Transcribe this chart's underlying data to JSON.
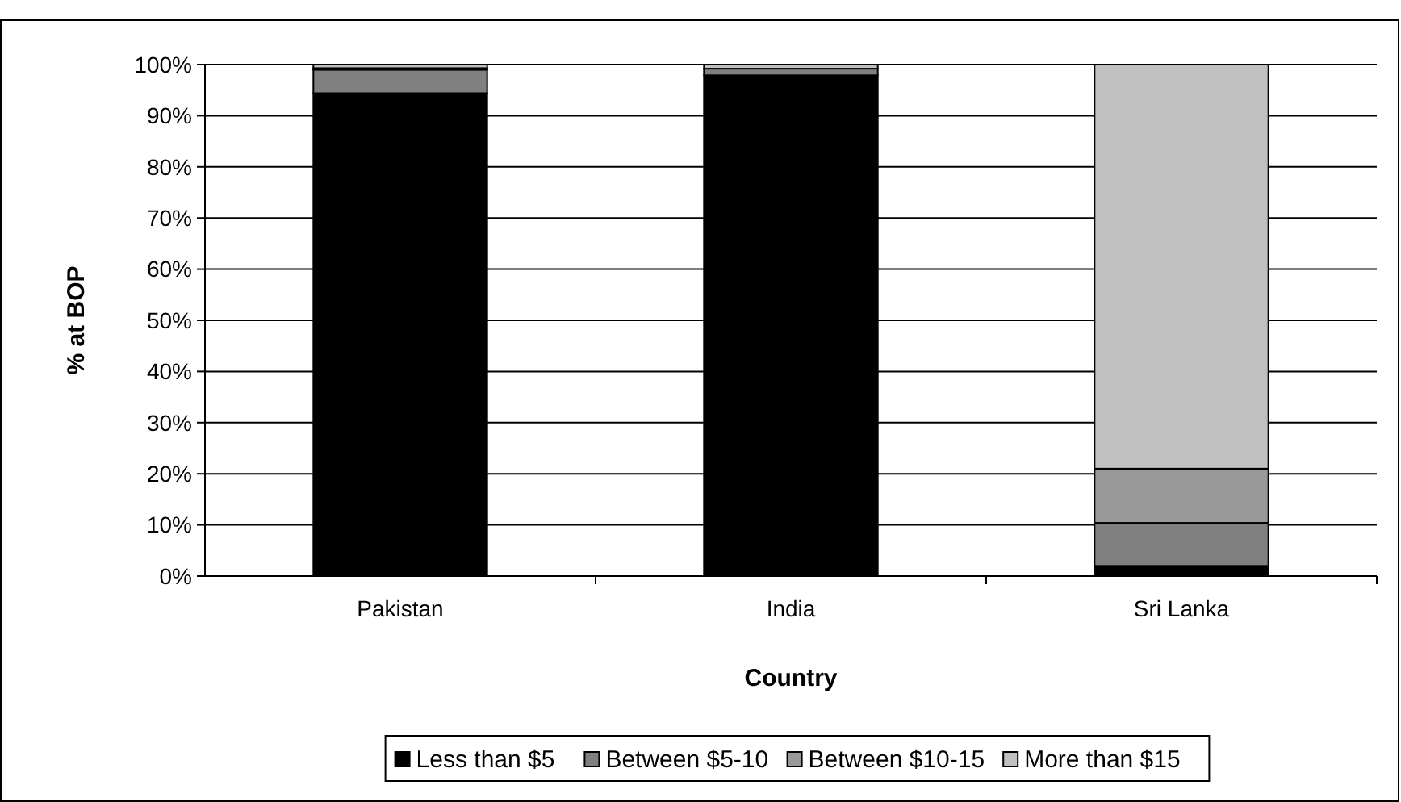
{
  "chart_data": {
    "type": "bar",
    "stacked": true,
    "xlabel": "Country",
    "ylabel": "% at BOP",
    "categories": [
      "Pakistan",
      "India",
      "Sri Lanka"
    ],
    "series": [
      {
        "name": "Less than $5",
        "color": "#000000",
        "values": [
          94.4,
          97.9,
          2.0
        ]
      },
      {
        "name": "Between $5-10",
        "color": "#808080",
        "values": [
          4.6,
          1.3,
          8.4
        ]
      },
      {
        "name": "Between $10-15",
        "color": "#999999",
        "values": [
          0.3,
          null,
          10.6
        ]
      },
      {
        "name": "More than $15",
        "color": "#c0c0c0",
        "values": [
          0.7,
          0.8,
          79.0
        ]
      }
    ],
    "ylim": [
      0,
      100
    ],
    "yticks": [
      {
        "value": 0,
        "label": "0%"
      },
      {
        "value": 10,
        "label": "10%"
      },
      {
        "value": 20,
        "label": "20%"
      },
      {
        "value": 30,
        "label": "30%"
      },
      {
        "value": 40,
        "label": "40%"
      },
      {
        "value": 50,
        "label": "50%"
      },
      {
        "value": 60,
        "label": "60%"
      },
      {
        "value": 70,
        "label": "70%"
      },
      {
        "value": 80,
        "label": "80%"
      },
      {
        "value": 90,
        "label": "90%"
      },
      {
        "value": 100,
        "label": "100%"
      }
    ],
    "grid": "y",
    "legend": "bottom"
  }
}
